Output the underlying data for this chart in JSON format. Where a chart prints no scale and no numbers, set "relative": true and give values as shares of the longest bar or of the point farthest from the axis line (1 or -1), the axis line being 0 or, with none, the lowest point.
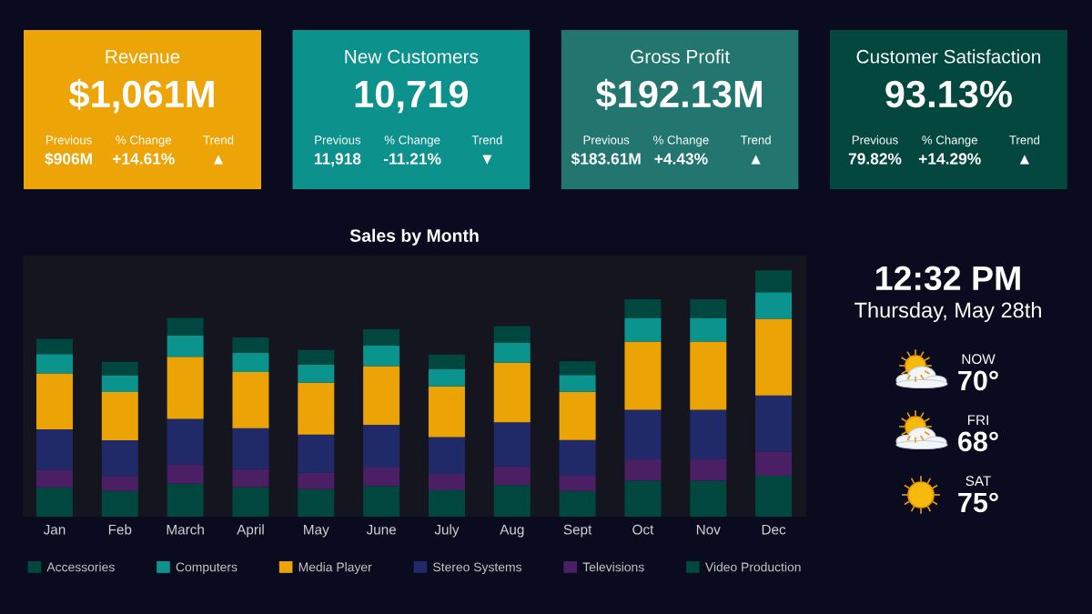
{
  "chart_data": [
    {
      "type": "other",
      "title": "Revenue",
      "color": "#eca406",
      "annotations": [
        "$1,061M",
        "Previous",
        "$906M",
        "% Change",
        "+14.61%",
        "Trend",
        "▲"
      ]
    },
    {
      "type": "other",
      "title": "New Customers",
      "color": "#0c918d",
      "annotations": [
        "10,719",
        "Previous",
        "11,918",
        "% Change",
        "-11.21%",
        "Trend",
        "▼"
      ]
    },
    {
      "type": "other",
      "title": "Gross Profit",
      "color": "#237670",
      "annotations": [
        "$192.13M",
        "Previous",
        "$183.61M",
        "% Change",
        "+4.43%",
        "Trend",
        "▲"
      ]
    },
    {
      "type": "other",
      "title": "Customer Satisfaction",
      "color": "#03473f",
      "annotations": [
        "93.13%",
        "Previous",
        "79.82%",
        "% Change",
        "+14.29%",
        "Trend",
        "▲"
      ]
    },
    {
      "type": "bar",
      "title": "Sales by Month",
      "categories": [
        "Jan",
        "Feb",
        "March",
        "April",
        "May",
        "June",
        "July",
        "Aug",
        "Sept",
        "Oct",
        "Nov",
        "Dec"
      ],
      "stacked": true,
      "relative": true,
      "legend": "bottom",
      "series": [
        {
          "name": "Video Production",
          "color": "#00473f",
          "values": [
            0.119,
            0.104,
            0.134,
            0.12,
            0.112,
            0.125,
            0.107,
            0.128,
            0.104,
            0.146,
            0.146,
            0.166
          ]
        },
        {
          "name": "Televisions",
          "color": "#4a1f63",
          "values": [
            0.071,
            0.061,
            0.077,
            0.073,
            0.066,
            0.074,
            0.067,
            0.076,
            0.062,
            0.087,
            0.087,
            0.098
          ]
        },
        {
          "name": "Stereo Systems",
          "color": "#212a69",
          "values": [
            0.165,
            0.145,
            0.186,
            0.166,
            0.155,
            0.174,
            0.149,
            0.179,
            0.145,
            0.201,
            0.201,
            0.228
          ]
        },
        {
          "name": "Media Player",
          "color": "#eba305",
          "values": [
            0.227,
            0.196,
            0.252,
            0.228,
            0.211,
            0.238,
            0.206,
            0.242,
            0.196,
            0.277,
            0.277,
            0.311
          ]
        },
        {
          "name": "Computers",
          "color": "#0b938e",
          "values": [
            0.078,
            0.068,
            0.087,
            0.078,
            0.073,
            0.083,
            0.071,
            0.082,
            0.068,
            0.096,
            0.096,
            0.108
          ]
        },
        {
          "name": "Accessories",
          "color": "#00473f",
          "values": [
            0.062,
            0.055,
            0.071,
            0.063,
            0.06,
            0.067,
            0.058,
            0.067,
            0.056,
            0.076,
            0.076,
            0.089
          ]
        }
      ]
    },
    {
      "type": "other",
      "annotations": [
        "12:32 PM",
        "Thursday, May 28th",
        "NOW",
        "70°",
        "FRI",
        "68°",
        "SAT",
        "75°"
      ]
    }
  ]
}
